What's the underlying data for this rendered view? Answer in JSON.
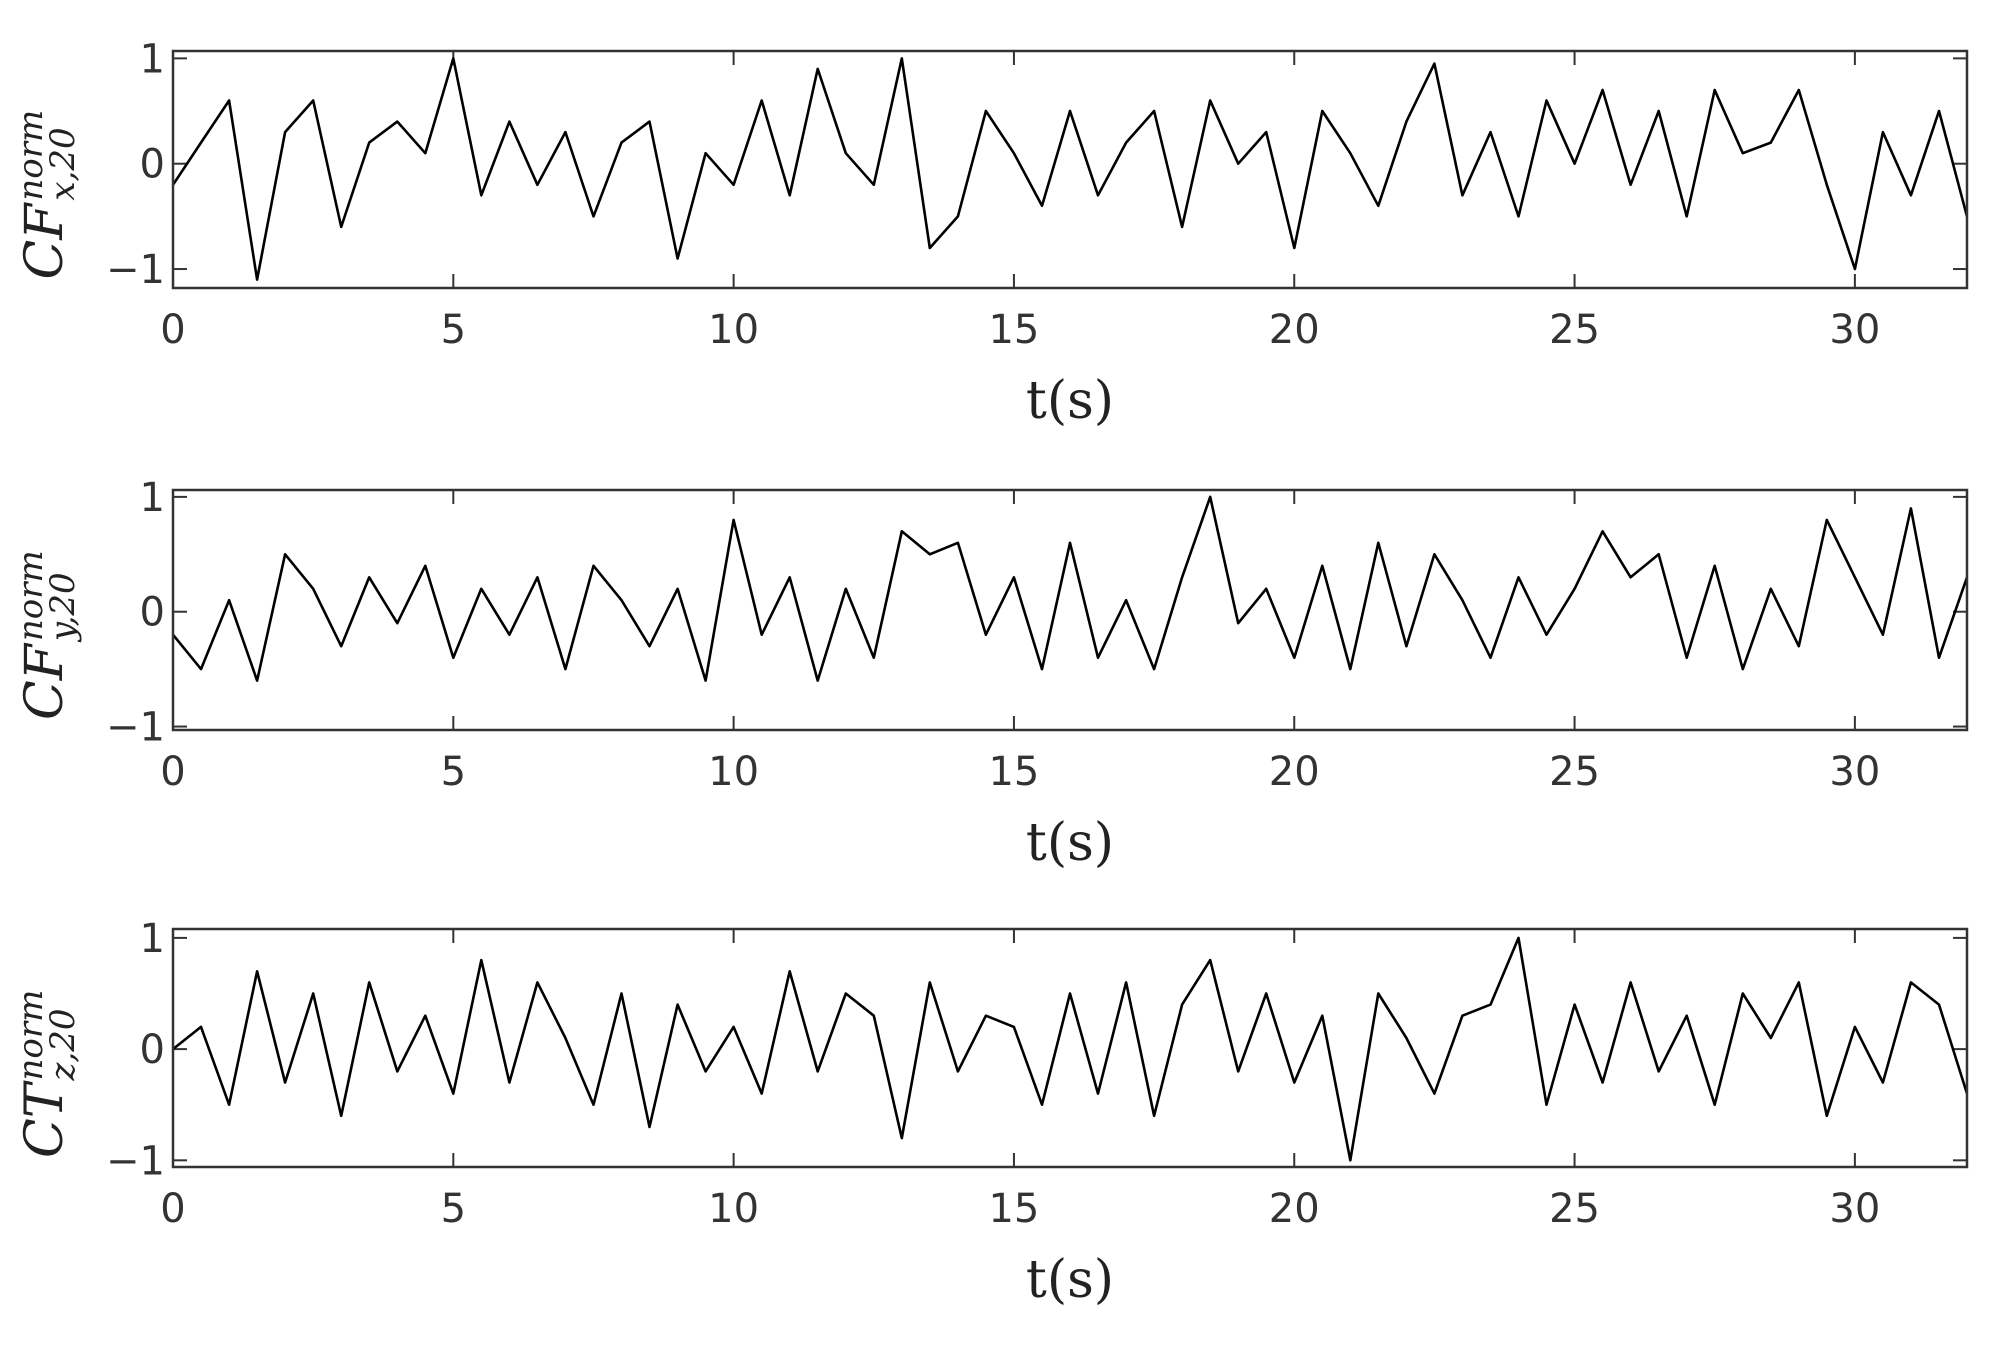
{
  "chart_data": [
    {
      "type": "line",
      "ylabel": {
        "main": "CF",
        "sup": "norm",
        "sub": "x,20"
      },
      "xlabel": "t(s)",
      "color": "#000000",
      "x": [
        0,
        0.5,
        1,
        1.5,
        2,
        2.5,
        3,
        3.5,
        4,
        4.5,
        5,
        5.5,
        6,
        6.5,
        7,
        7.5,
        8,
        8.5,
        9,
        9.5,
        10,
        10.5,
        11,
        11.5,
        12,
        12.5,
        13,
        13.5,
        14,
        14.5,
        15,
        15.5,
        16,
        16.5,
        17,
        17.5,
        18,
        18.5,
        19,
        19.5,
        20,
        20.5,
        21,
        21.5,
        22,
        22.5,
        23,
        23.5,
        24,
        24.5,
        25,
        25.5,
        26,
        26.5,
        27,
        27.5,
        28,
        28.5,
        29,
        29.5,
        30,
        30.5,
        31,
        31.5,
        32
      ],
      "values": [
        -0.2,
        0.2,
        0.6,
        -1.1,
        0.3,
        0.6,
        -0.6,
        0.2,
        0.4,
        0.1,
        1.0,
        -0.3,
        0.4,
        -0.2,
        0.3,
        -0.5,
        0.2,
        0.4,
        -0.9,
        0.1,
        -0.2,
        0.6,
        -0.3,
        0.9,
        0.1,
        -0.2,
        1.0,
        -0.8,
        -0.5,
        0.5,
        0.1,
        -0.4,
        0.5,
        -0.3,
        0.2,
        0.5,
        -0.6,
        0.6,
        0.0,
        0.3,
        -0.8,
        0.5,
        0.1,
        -0.4,
        0.4,
        0.95,
        -0.3,
        0.3,
        -0.5,
        0.6,
        0.0,
        0.7,
        -0.2,
        0.5,
        -0.5,
        0.7,
        0.1,
        0.2,
        0.7,
        -0.2,
        -1.0,
        0.3,
        -0.3,
        0.5,
        -0.5
      ],
      "xlim": [
        0,
        32
      ],
      "xticks": [
        0,
        5,
        10,
        15,
        20,
        25,
        30
      ],
      "ylim": [
        -1.18,
        1.07
      ],
      "yticks": [
        {
          "value": -1,
          "label": "−1"
        },
        0,
        1
      ]
    },
    {
      "type": "line",
      "ylabel": {
        "main": "CF",
        "sup": "norm",
        "sub": "y,20"
      },
      "xlabel": "t(s)",
      "color": "#000000",
      "x": [
        0,
        0.5,
        1,
        1.5,
        2,
        2.5,
        3,
        3.5,
        4,
        4.5,
        5,
        5.5,
        6,
        6.5,
        7,
        7.5,
        8,
        8.5,
        9,
        9.5,
        10,
        10.5,
        11,
        11.5,
        12,
        12.5,
        13,
        13.5,
        14,
        14.5,
        15,
        15.5,
        16,
        16.5,
        17,
        17.5,
        18,
        18.5,
        19,
        19.5,
        20,
        20.5,
        21,
        21.5,
        22,
        22.5,
        23,
        23.5,
        24,
        24.5,
        25,
        25.5,
        26,
        26.5,
        27,
        27.5,
        28,
        28.5,
        29,
        29.5,
        30,
        30.5,
        31,
        31.5,
        32
      ],
      "values": [
        -0.2,
        -0.5,
        0.1,
        -0.6,
        0.5,
        0.2,
        -0.3,
        0.3,
        -0.1,
        0.4,
        -0.4,
        0.2,
        -0.2,
        0.3,
        -0.5,
        0.4,
        0.1,
        -0.3,
        0.2,
        -0.6,
        0.8,
        -0.2,
        0.3,
        -0.6,
        0.2,
        -0.4,
        0.7,
        0.5,
        0.6,
        -0.2,
        0.3,
        -0.5,
        0.6,
        -0.4,
        0.1,
        -0.5,
        0.3,
        1.0,
        -0.1,
        0.2,
        -0.4,
        0.4,
        -0.5,
        0.6,
        -0.3,
        0.5,
        0.1,
        -0.4,
        0.3,
        -0.2,
        0.2,
        0.7,
        0.3,
        0.5,
        -0.4,
        0.4,
        -0.5,
        0.2,
        -0.3,
        0.8,
        0.3,
        -0.2,
        0.9,
        -0.4,
        0.3
      ],
      "xlim": [
        0,
        32
      ],
      "xticks": [
        0,
        5,
        10,
        15,
        20,
        25,
        30
      ],
      "ylim": [
        -1.03,
        1.06
      ],
      "yticks": [
        {
          "value": -1,
          "label": "−1"
        },
        0,
        1
      ]
    },
    {
      "type": "line",
      "ylabel": {
        "main": "CT",
        "sup": "norm",
        "sub": "z,20"
      },
      "xlabel": "t(s)",
      "color": "#000000",
      "x": [
        0,
        0.5,
        1,
        1.5,
        2,
        2.5,
        3,
        3.5,
        4,
        4.5,
        5,
        5.5,
        6,
        6.5,
        7,
        7.5,
        8,
        8.5,
        9,
        9.5,
        10,
        10.5,
        11,
        11.5,
        12,
        12.5,
        13,
        13.5,
        14,
        14.5,
        15,
        15.5,
        16,
        16.5,
        17,
        17.5,
        18,
        18.5,
        19,
        19.5,
        20,
        20.5,
        21,
        21.5,
        22,
        22.5,
        23,
        23.5,
        24,
        24.5,
        25,
        25.5,
        26,
        26.5,
        27,
        27.5,
        28,
        28.5,
        29,
        29.5,
        30,
        30.5,
        31,
        31.5,
        32
      ],
      "values": [
        0.0,
        0.2,
        -0.5,
        0.7,
        -0.3,
        0.5,
        -0.6,
        0.6,
        -0.2,
        0.3,
        -0.4,
        0.8,
        -0.3,
        0.6,
        0.1,
        -0.5,
        0.5,
        -0.7,
        0.4,
        -0.2,
        0.2,
        -0.4,
        0.7,
        -0.2,
        0.5,
        0.3,
        -0.8,
        0.6,
        -0.2,
        0.3,
        0.2,
        -0.5,
        0.5,
        -0.4,
        0.6,
        -0.6,
        0.4,
        0.8,
        -0.2,
        0.5,
        -0.3,
        0.3,
        -1.0,
        0.5,
        0.1,
        -0.4,
        0.3,
        0.4,
        1.0,
        -0.5,
        0.4,
        -0.3,
        0.6,
        -0.2,
        0.3,
        -0.5,
        0.5,
        0.1,
        0.6,
        -0.6,
        0.2,
        -0.3,
        0.6,
        0.4,
        -0.4
      ],
      "xlim": [
        0,
        32
      ],
      "xticks": [
        0,
        5,
        10,
        15,
        20,
        25,
        30
      ],
      "ylim": [
        -1.06,
        1.08
      ],
      "yticks": [
        {
          "value": -1,
          "label": "−1"
        },
        0,
        1
      ]
    }
  ]
}
